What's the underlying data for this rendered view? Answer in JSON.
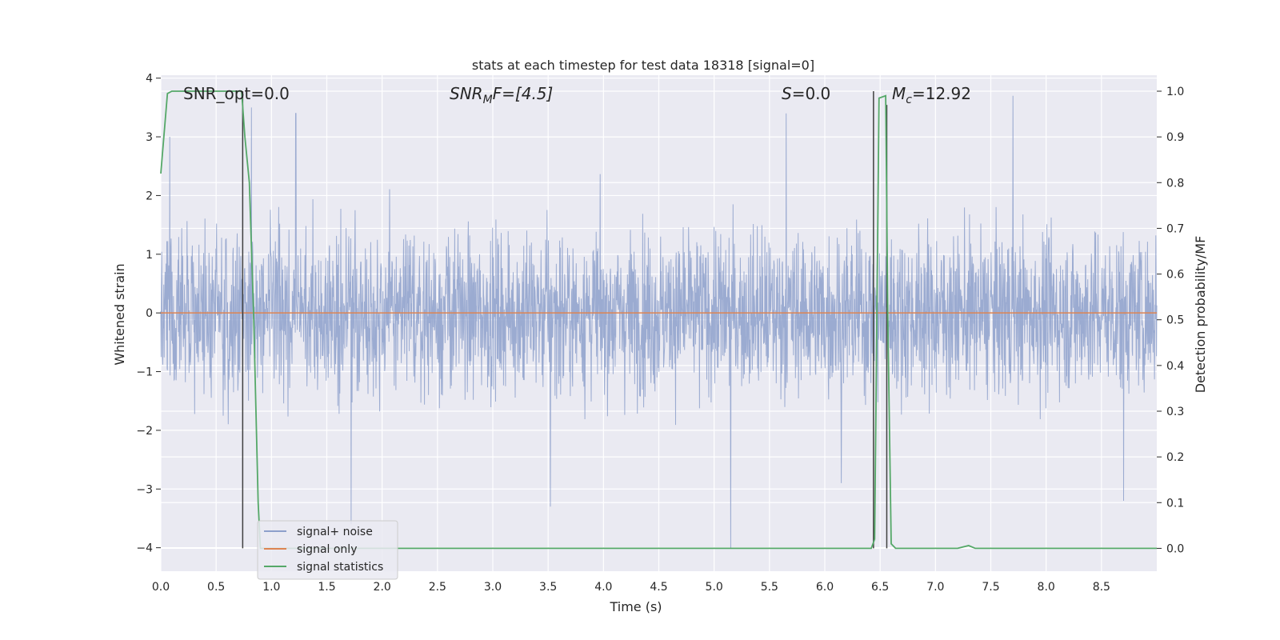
{
  "chart_data": {
    "type": "line",
    "title": "stats at each timestep for test data 18318 [signal=0]",
    "xlabel": "Time (s)",
    "ylabel_left": "Whitened strain",
    "ylabel_right": "Detection probability/MF",
    "xlim": [
      0.0,
      9.0
    ],
    "ylim_left": [
      -4.4,
      4.05
    ],
    "ylim_right": [
      -0.05,
      1.035
    ],
    "grid": true,
    "legend_position": "lower-left",
    "x_ticks": [
      "0.0",
      "0.5",
      "1.0",
      "1.5",
      "2.0",
      "2.5",
      "3.0",
      "3.5",
      "4.0",
      "4.5",
      "5.0",
      "5.5",
      "6.0",
      "6.5",
      "7.0",
      "7.5",
      "8.0",
      "8.5"
    ],
    "y_ticks_left": [
      "4",
      "3",
      "2",
      "1",
      "0",
      "−1",
      "−2",
      "−3",
      "−4"
    ],
    "y_ticks_right": [
      "1.0",
      "0.9",
      "0.8",
      "0.7",
      "0.6",
      "0.5",
      "0.4",
      "0.3",
      "0.2",
      "0.1",
      "0.0"
    ],
    "annotations": {
      "snr_opt": "SNR_opt=0.0",
      "snr_mf_main": "SNR",
      "snr_mf_sub": "M",
      "snr_mf_rest": "F=[4.5]",
      "s_main": "S",
      "s_rest": "=0.0",
      "mc_main": "M",
      "mc_sub": "c",
      "mc_rest": "=12.92"
    },
    "series": [
      {
        "name": "signal+ noise",
        "color": "#8da0cb",
        "kind": "noise",
        "notable_spikes": [
          [
            0.08,
            3.0
          ],
          [
            0.82,
            3.5
          ],
          [
            1.22,
            3.4
          ],
          [
            1.72,
            -3.6
          ],
          [
            3.52,
            -3.3
          ],
          [
            5.15,
            -4.0
          ],
          [
            5.65,
            3.4
          ],
          [
            6.15,
            -2.9
          ],
          [
            7.7,
            3.7
          ],
          [
            8.7,
            -3.2
          ]
        ]
      },
      {
        "name": "signal only",
        "color": "#dd8452",
        "kind": "flat",
        "value": 0.0
      },
      {
        "name": "signal statistics",
        "color": "#55a868",
        "kind": "probability",
        "points": [
          [
            0.0,
            0.82
          ],
          [
            0.06,
            0.995
          ],
          [
            0.1,
            1.0
          ],
          [
            0.73,
            1.0
          ],
          [
            0.76,
            0.9
          ],
          [
            0.8,
            0.8
          ],
          [
            0.84,
            0.5
          ],
          [
            0.88,
            0.1
          ],
          [
            0.9,
            0.0
          ],
          [
            6.42,
            0.0
          ],
          [
            6.45,
            0.02
          ],
          [
            6.49,
            0.985
          ],
          [
            6.55,
            0.99
          ],
          [
            6.57,
            0.5
          ],
          [
            6.6,
            0.01
          ],
          [
            6.64,
            0.0
          ],
          [
            7.2,
            0.0
          ],
          [
            7.3,
            0.006
          ],
          [
            7.36,
            0.0
          ],
          [
            9.0,
            0.0
          ]
        ]
      }
    ],
    "markers": [
      {
        "x": 0.74,
        "y_from": 0.0,
        "y_to": 1.0,
        "color": "#404040"
      },
      {
        "x": 6.44,
        "y_from": 0.0,
        "y_to": 1.0,
        "color": "#404040"
      },
      {
        "x": 6.56,
        "y_from": 0.0,
        "y_to": 0.97,
        "color": "#404040"
      }
    ],
    "legend": [
      "signal+ noise",
      "signal only",
      "signal statistics"
    ]
  }
}
